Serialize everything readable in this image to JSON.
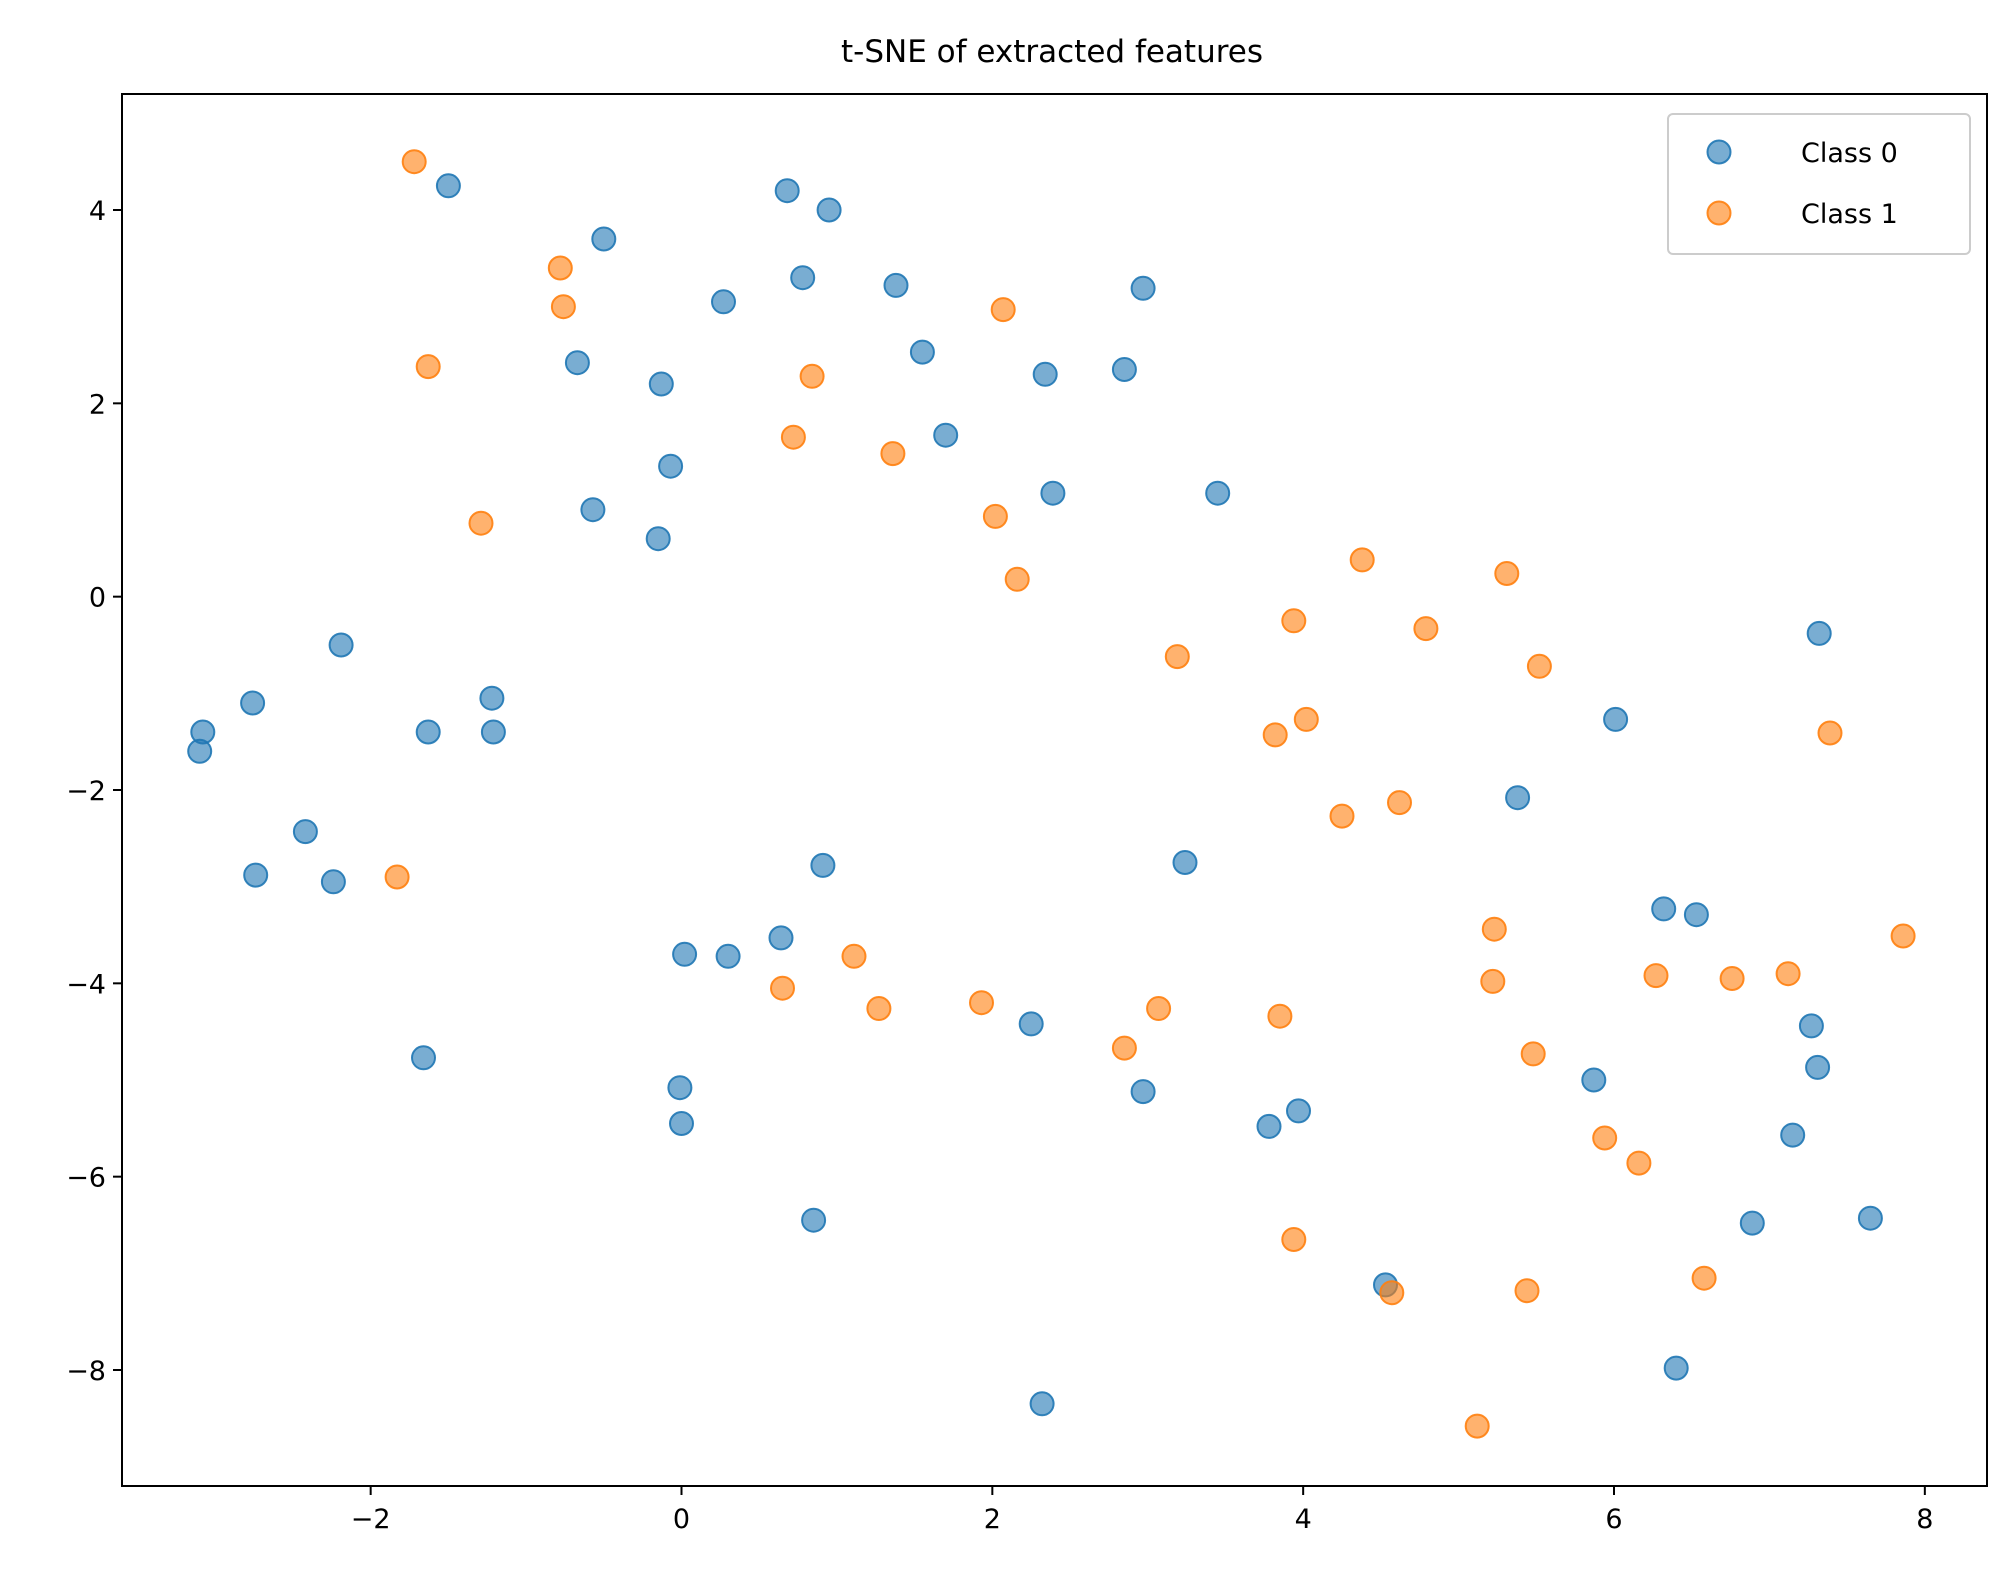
{
  "chart_data": {
    "type": "scatter",
    "title": "t-SNE of extracted features",
    "xlabel": "",
    "ylabel": "",
    "xlim": [
      -3.6,
      8.4
    ],
    "ylim": [
      -9.2,
      5.2
    ],
    "xticks": [
      -2,
      0,
      2,
      4,
      6,
      8
    ],
    "yticks": [
      4,
      2,
      0,
      -2,
      -4,
      -6,
      -8
    ],
    "legend_position": "top-right",
    "grid": false,
    "series": [
      {
        "name": "Class 0",
        "color": "#1f77b4",
        "points": [
          [
            -1.5,
            4.25
          ],
          [
            0.68,
            4.2
          ],
          [
            0.95,
            4.0
          ],
          [
            -0.5,
            3.7
          ],
          [
            0.78,
            3.3
          ],
          [
            1.38,
            3.22
          ],
          [
            2.97,
            3.19
          ],
          [
            0.27,
            3.05
          ],
          [
            1.55,
            2.53
          ],
          [
            -0.67,
            2.42
          ],
          [
            2.34,
            2.3
          ],
          [
            2.85,
            2.35
          ],
          [
            -0.13,
            2.2
          ],
          [
            1.7,
            1.67
          ],
          [
            -0.07,
            1.35
          ],
          [
            2.39,
            1.07
          ],
          [
            3.45,
            1.07
          ],
          [
            -0.57,
            0.9
          ],
          [
            -0.15,
            0.6
          ],
          [
            -2.19,
            -0.5
          ],
          [
            -1.22,
            -1.05
          ],
          [
            -2.76,
            -1.1
          ],
          [
            -3.08,
            -1.4
          ],
          [
            -1.63,
            -1.4
          ],
          [
            -1.21,
            -1.4
          ],
          [
            -3.1,
            -1.6
          ],
          [
            -2.42,
            -2.43
          ],
          [
            -2.74,
            -2.88
          ],
          [
            -2.24,
            -2.95
          ],
          [
            0.91,
            -2.78
          ],
          [
            3.24,
            -2.75
          ],
          [
            0.64,
            -3.53
          ],
          [
            0.02,
            -3.7
          ],
          [
            0.3,
            -3.72
          ],
          [
            2.25,
            -4.42
          ],
          [
            -1.66,
            -4.77
          ],
          [
            -0.01,
            -5.08
          ],
          [
            2.97,
            -5.12
          ],
          [
            0.0,
            -5.45
          ],
          [
            3.97,
            -5.32
          ],
          [
            3.78,
            -5.48
          ],
          [
            0.85,
            -6.45
          ],
          [
            4.53,
            -7.12
          ],
          [
            2.32,
            -8.35
          ],
          [
            7.32,
            -0.38
          ],
          [
            6.01,
            -1.27
          ],
          [
            5.38,
            -2.08
          ],
          [
            6.32,
            -3.23
          ],
          [
            6.53,
            -3.29
          ],
          [
            7.27,
            -4.44
          ],
          [
            7.31,
            -4.87
          ],
          [
            5.87,
            -5.0
          ],
          [
            7.15,
            -5.57
          ],
          [
            6.89,
            -6.48
          ],
          [
            7.65,
            -6.43
          ],
          [
            6.4,
            -7.98
          ]
        ]
      },
      {
        "name": "Class 1",
        "color": "#ff7f0e",
        "points": [
          [
            -1.72,
            4.5
          ],
          [
            -0.78,
            3.4
          ],
          [
            -0.76,
            3.0
          ],
          [
            -1.63,
            2.38
          ],
          [
            2.07,
            2.97
          ],
          [
            0.84,
            2.28
          ],
          [
            0.72,
            1.65
          ],
          [
            1.36,
            1.48
          ],
          [
            -1.29,
            0.76
          ],
          [
            2.02,
            0.83
          ],
          [
            2.16,
            0.18
          ],
          [
            3.19,
            -0.62
          ],
          [
            4.38,
            0.38
          ],
          [
            5.31,
            0.24
          ],
          [
            3.94,
            -0.25
          ],
          [
            4.79,
            -0.33
          ],
          [
            5.52,
            -0.72
          ],
          [
            3.82,
            -1.43
          ],
          [
            4.02,
            -1.27
          ],
          [
            7.39,
            -1.41
          ],
          [
            4.25,
            -2.27
          ],
          [
            4.62,
            -2.13
          ],
          [
            -1.83,
            -2.9
          ],
          [
            5.23,
            -3.44
          ],
          [
            7.86,
            -3.51
          ],
          [
            1.11,
            -3.72
          ],
          [
            0.65,
            -4.05
          ],
          [
            1.27,
            -4.26
          ],
          [
            1.93,
            -4.2
          ],
          [
            3.07,
            -4.26
          ],
          [
            2.85,
            -4.67
          ],
          [
            3.85,
            -4.34
          ],
          [
            5.22,
            -3.98
          ],
          [
            6.27,
            -3.92
          ],
          [
            6.76,
            -3.95
          ],
          [
            7.12,
            -3.9
          ],
          [
            5.48,
            -4.73
          ],
          [
            5.94,
            -5.6
          ],
          [
            6.16,
            -5.86
          ],
          [
            3.94,
            -6.65
          ],
          [
            4.57,
            -7.2
          ],
          [
            5.44,
            -7.18
          ],
          [
            6.58,
            -7.05
          ],
          [
            5.12,
            -8.58
          ]
        ]
      }
    ]
  }
}
